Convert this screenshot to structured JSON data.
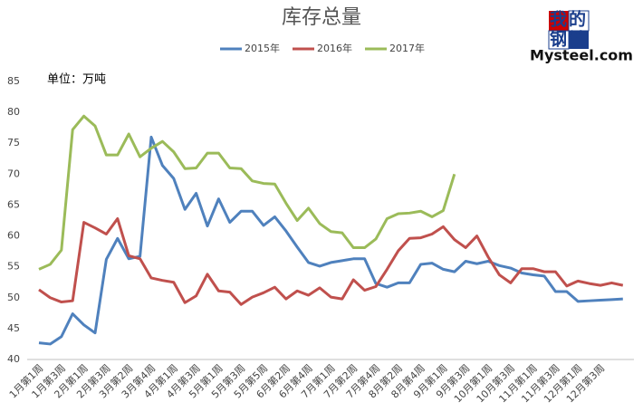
{
  "chart_data": {
    "type": "line",
    "title": "库存总量",
    "unit_label": "单位：万吨",
    "categories": [
      "1月第1周",
      null,
      "1月第3周",
      null,
      "2月第1周",
      null,
      "2月第3周",
      null,
      "3月第2周",
      null,
      "3月第4周",
      null,
      "4月第1周",
      null,
      "4月第3周",
      null,
      "5月第1周",
      null,
      "5月第3周",
      null,
      "5月第5周",
      null,
      "6月第2周",
      null,
      "6月第4周",
      null,
      "7月第1周",
      null,
      "7月第2周",
      null,
      "7月第4周",
      null,
      "8月第2周",
      null,
      "8月第4周",
      null,
      "9月第1周",
      null,
      "9月第3周",
      null,
      "10月第1周",
      null,
      "10月第3周",
      null,
      "11月第1周",
      null,
      "11月第3周",
      null,
      "12月第1周",
      null,
      "12月第3周",
      null,
      null
    ],
    "series": [
      {
        "name": "2015年",
        "color": "#4f81bd",
        "values": [
          42.7,
          42.5,
          43.7,
          47.4,
          45.6,
          44.3,
          56.2,
          59.6,
          56.3,
          56.7,
          76.0,
          71.4,
          69.3,
          64.3,
          66.9,
          61.6,
          66.0,
          62.2,
          64.0,
          64.0,
          61.7,
          63.1,
          60.8,
          58.2,
          55.7,
          55.1,
          55.7,
          56.0,
          56.3,
          56.3,
          52.3,
          51.7,
          52.4,
          52.4,
          55.4,
          55.6,
          54.6,
          54.2,
          55.9,
          55.5,
          55.9,
          55.2,
          54.8,
          54.0,
          53.7,
          53.5,
          51.0,
          51.0,
          49.4,
          49.5,
          49.6,
          49.7,
          49.8
        ]
      },
      {
        "name": "2016年",
        "color": "#c0504d",
        "values": [
          51.3,
          50.0,
          49.3,
          49.5,
          62.2,
          61.3,
          60.3,
          62.8,
          56.8,
          56.3,
          53.2,
          52.8,
          52.5,
          49.2,
          50.3,
          53.8,
          51.1,
          50.9,
          48.9,
          50.1,
          50.8,
          51.7,
          49.8,
          51.1,
          50.4,
          51.6,
          50.1,
          49.8,
          52.9,
          51.2,
          51.8,
          54.6,
          57.6,
          59.6,
          59.7,
          60.3,
          61.5,
          59.4,
          58.1,
          60.0,
          56.6,
          53.7,
          52.4,
          54.7,
          54.7,
          54.2,
          54.2,
          51.9,
          52.7,
          52.3,
          52.0,
          52.4,
          52.0
        ]
      },
      {
        "name": "2017年",
        "color": "#9bbb59",
        "values": [
          54.6,
          55.4,
          57.7,
          77.2,
          79.4,
          77.8,
          73.1,
          73.1,
          76.5,
          72.8,
          74.2,
          75.3,
          73.6,
          70.9,
          71.0,
          73.4,
          73.4,
          71.0,
          70.9,
          68.9,
          68.5,
          68.4,
          65.3,
          62.5,
          64.5,
          62.0,
          60.7,
          60.5,
          58.1,
          58.1,
          59.5,
          62.8,
          63.6,
          63.7,
          64.0,
          63.1,
          64.1,
          70.0,
          null,
          null,
          null,
          null,
          null,
          null,
          null,
          null,
          null,
          null,
          null,
          null,
          null,
          null,
          null
        ]
      }
    ],
    "ylim": [
      40,
      85
    ],
    "yticks": [
      40,
      45,
      50,
      55,
      60,
      65,
      70,
      75,
      80,
      85
    ],
    "grid": false,
    "legend": "top"
  },
  "logo": {
    "cn_top": "我的",
    "cn_bottom": "钢铁",
    "en": "Mysteel.com"
  }
}
